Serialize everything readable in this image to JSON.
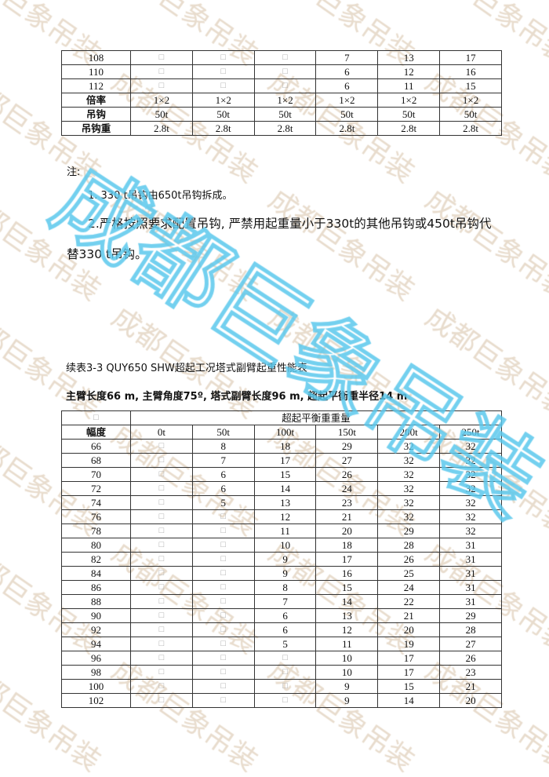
{
  "watermark": {
    "background_text": "成都巨象吊装",
    "overlay_text": "成都巨象吊装",
    "overlay_color": "#5bc8ec"
  },
  "placeholder": "□",
  "table_top": {
    "rows": [
      [
        "108",
        "□",
        "□",
        "□",
        "7",
        "13",
        "17"
      ],
      [
        "110",
        "□",
        "□",
        "□",
        "6",
        "12",
        "16"
      ],
      [
        "112",
        "□",
        "□",
        "□",
        "6",
        "11",
        "15"
      ],
      [
        "倍率",
        "1×2",
        "1×2",
        "1×2",
        "1×2",
        "1×2",
        "1×2"
      ],
      [
        "吊钩",
        "50t",
        "50t",
        "50t",
        "50t",
        "50t",
        "50t"
      ],
      [
        "吊钩重",
        "2.8t",
        "2.8t",
        "2.8t",
        "2.8t",
        "2.8t",
        "2.8t"
      ]
    ]
  },
  "notes": {
    "heading": "注:",
    "item1": "1. 330 t吊钩由650t吊钩拆成。",
    "item2_line1": "2.严格按照要求配置吊钩, 严禁用起重量小于330t的其他吊钩或450t吊钩代",
    "item2_line2": "替330 t吊钩。"
  },
  "table_title": "续表3-3 QUY650 SHW超起工况塔式副臂起重性能表",
  "table_subtitle": "主臂长度66 m, 主臂角度75º, 塔式副臂长度96 m, 超起平衡重半径14 m",
  "table_main": {
    "corner": "□",
    "group_header": "超起平衡重重量",
    "row_header": "幅度",
    "columns": [
      "0t",
      "50t",
      "100t",
      "150t",
      "200t",
      "250t"
    ],
    "rows": [
      [
        "66",
        "□",
        "8",
        "18",
        "29",
        "32",
        "32"
      ],
      [
        "68",
        "□",
        "7",
        "17",
        "27",
        "32",
        "32"
      ],
      [
        "70",
        "□",
        "6",
        "15",
        "26",
        "32",
        "32"
      ],
      [
        "72",
        "□",
        "6",
        "14",
        "24",
        "32",
        "32"
      ],
      [
        "74",
        "□",
        "5",
        "13",
        "23",
        "32",
        "32"
      ],
      [
        "76",
        "□",
        "□",
        "12",
        "21",
        "32",
        "32"
      ],
      [
        "78",
        "□",
        "□",
        "11",
        "20",
        "29",
        "32"
      ],
      [
        "80",
        "□",
        "□",
        "10",
        "18",
        "28",
        "31"
      ],
      [
        "82",
        "□",
        "□",
        "9",
        "17",
        "26",
        "31"
      ],
      [
        "84",
        "□",
        "□",
        "9",
        "16",
        "25",
        "31"
      ],
      [
        "86",
        "□",
        "□",
        "8",
        "15",
        "24",
        "31"
      ],
      [
        "88",
        "□",
        "□",
        "7",
        "14",
        "22",
        "31"
      ],
      [
        "90",
        "□",
        "□",
        "6",
        "13",
        "21",
        "29"
      ],
      [
        "92",
        "□",
        "□",
        "6",
        "12",
        "20",
        "28"
      ],
      [
        "94",
        "□",
        "□",
        "5",
        "11",
        "19",
        "27"
      ],
      [
        "96",
        "□",
        "□",
        "□",
        "10",
        "17",
        "26"
      ],
      [
        "98",
        "□",
        "□",
        "□",
        "10",
        "17",
        "23"
      ],
      [
        "100",
        "□",
        "□",
        "□",
        "9",
        "15",
        "21"
      ],
      [
        "102",
        "□",
        "□",
        "□",
        "9",
        "14",
        "20"
      ]
    ]
  }
}
